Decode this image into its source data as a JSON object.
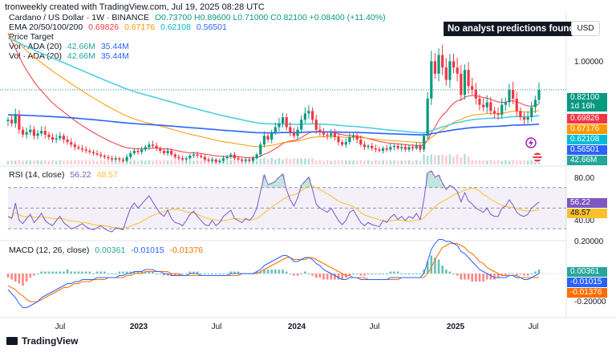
{
  "header": {
    "text": "tronweekly created with TradingView.com, Jul 19, 2025 08:28 UTC"
  },
  "symbol": {
    "title": "Cardano / US Dollar · 1W · BINANCE",
    "ohlc": "O0.73700  H0.89600  L0.71000  C0.82100  +0.08400 (+11.40%)",
    "price_up_color": "#089981"
  },
  "ema": {
    "label": "EMA 20/50/100/200",
    "values": [
      "0.69826",
      "0.67176",
      "0.62108",
      "0.56501"
    ],
    "colors": [
      "#f23645",
      "#ff9800",
      "#00bcd4",
      "#2962ff"
    ]
  },
  "price_target": {
    "label": "Price Target"
  },
  "vol_rows": [
    {
      "label": "Vol · ADA (20)",
      "v1": "42.66M",
      "v2": "35.44M"
    },
    {
      "label": "Vol · ADA (20)",
      "v1": "42.66M",
      "v2": "35.44M"
    }
  ],
  "tooltip": "No analyst predictions found.",
  "currency": "USD",
  "price_axis": {
    "ticks": [
      "1.00000"
    ],
    "tags": [
      {
        "text": "0.82100",
        "color": "#089981"
      },
      {
        "text": "1d 16h",
        "color": "#089981"
      },
      {
        "text": "0.69826",
        "color": "#f23645"
      },
      {
        "text": "0.67176",
        "color": "#ff9800"
      },
      {
        "text": "0.62108",
        "color": "#00bcd4"
      },
      {
        "text": "0.56501",
        "color": "#2962ff"
      },
      {
        "text": "42.66M",
        "color": "#26a69a"
      }
    ]
  },
  "rsi": {
    "label": "RSI (14, close)",
    "v1": "56.22",
    "v2": "48.57",
    "ticks": [
      "80.00",
      "40.00"
    ],
    "tags": [
      {
        "text": "56.22",
        "color": "#7e57c2"
      },
      {
        "text": "48.57",
        "color": "#fbc02d"
      }
    ]
  },
  "macd": {
    "label": "MACD (12, 26, close)",
    "v1": "0.00361",
    "v2": "-0.01015",
    "v3": "-0.01376",
    "ticks": [
      "0.20000",
      "-0.20000"
    ],
    "tags": [
      {
        "text": "0.00361",
        "color": "#26a69a"
      },
      {
        "text": "-0.01015",
        "color": "#2962ff"
      },
      {
        "text": "-0.01376",
        "color": "#ff6d00"
      }
    ]
  },
  "x_axis": [
    {
      "label": "Jul",
      "bold": false
    },
    {
      "label": "2023",
      "bold": true
    },
    {
      "label": "Jul",
      "bold": false
    },
    {
      "label": "2024",
      "bold": true
    },
    {
      "label": "Jul",
      "bold": false
    },
    {
      "label": "2025",
      "bold": true
    },
    {
      "label": "Jul",
      "bold": false
    }
  ],
  "footer": "TradingView",
  "chart_data": [
    {
      "type": "candlestick",
      "title": "Cardano / US Dollar · 1W · BINANCE",
      "last": {
        "open": 0.737,
        "high": 0.896,
        "low": 0.71,
        "close": 0.821,
        "change": 0.084,
        "change_pct": 11.4
      },
      "close_series": [
        0.58,
        0.55,
        0.62,
        0.5,
        0.46,
        0.48,
        0.5,
        0.45,
        0.47,
        0.49,
        0.46,
        0.44,
        0.42,
        0.43,
        0.45,
        0.42,
        0.4,
        0.38,
        0.36,
        0.35,
        0.34,
        0.33,
        0.32,
        0.31,
        0.3,
        0.29,
        0.28,
        0.27,
        0.26,
        0.27,
        0.26,
        0.25,
        0.28,
        0.31,
        0.33,
        0.32,
        0.34,
        0.36,
        0.38,
        0.37,
        0.35,
        0.33,
        0.31,
        0.33,
        0.3,
        0.28,
        0.27,
        0.26,
        0.27,
        0.29,
        0.3,
        0.29,
        0.28,
        0.26,
        0.25,
        0.26,
        0.24,
        0.25,
        0.27,
        0.28,
        0.3,
        0.27,
        0.26,
        0.25,
        0.26,
        0.25,
        0.27,
        0.3,
        0.38,
        0.45,
        0.42,
        0.48,
        0.52,
        0.55,
        0.6,
        0.52,
        0.48,
        0.45,
        0.5,
        0.58,
        0.63,
        0.65,
        0.58,
        0.5,
        0.48,
        0.46,
        0.45,
        0.47,
        0.44,
        0.4,
        0.38,
        0.4,
        0.44,
        0.45,
        0.42,
        0.38,
        0.36,
        0.37,
        0.35,
        0.34,
        0.33,
        0.35,
        0.34,
        0.36,
        0.37,
        0.35,
        0.36,
        0.34,
        0.36,
        0.35,
        0.37,
        0.34,
        0.45,
        0.75,
        1.05,
        0.95,
        1.1,
        1.0,
        0.9,
        1.05,
        1.0,
        0.95,
        0.78,
        0.98,
        0.85,
        0.82,
        0.75,
        0.7,
        0.68,
        0.72,
        0.65,
        0.63,
        0.62,
        0.7,
        0.72,
        0.82,
        0.75,
        0.65,
        0.6,
        0.58,
        0.6,
        0.68,
        0.74,
        0.82
      ],
      "ema": {
        "20": 0.69826,
        "50": 0.67176,
        "100": 0.62108,
        "200": 0.56501
      },
      "volume_ma": {
        "last": "42.66M",
        "ma20": "35.44M"
      }
    },
    {
      "type": "line",
      "title": "RSI (14, close)",
      "last": 56.22,
      "ma": 48.57,
      "ylim": [
        20,
        90
      ],
      "bands": [
        70,
        30
      ],
      "series": [
        {
          "name": "RSI",
          "values": [
            42,
            40,
            55,
            38,
            35,
            40,
            44,
            36,
            40,
            45,
            38,
            35,
            33,
            38,
            42,
            36,
            33,
            30,
            31,
            33,
            35,
            32,
            30,
            29,
            31,
            33,
            30,
            28,
            27,
            31,
            30,
            29,
            40,
            50,
            55,
            50,
            54,
            58,
            62,
            56,
            50,
            45,
            42,
            48,
            40,
            36,
            35,
            33,
            38,
            44,
            47,
            42,
            38,
            34,
            33,
            38,
            33,
            36,
            42,
            45,
            48,
            40,
            38,
            36,
            40,
            38,
            42,
            50,
            66,
            82,
            73,
            74,
            76,
            80,
            83,
            68,
            58,
            52,
            60,
            72,
            76,
            80,
            68,
            54,
            50,
            48,
            46,
            50,
            44,
            38,
            34,
            38,
            46,
            48,
            42,
            36,
            33,
            36,
            34,
            33,
            32,
            38,
            36,
            41,
            44,
            39,
            42,
            38,
            42,
            40,
            45,
            39,
            58,
            84,
            86,
            80,
            82,
            74,
            68,
            72,
            70,
            66,
            56,
            65,
            57,
            54,
            50,
            48,
            46,
            50,
            44,
            42,
            42,
            50,
            52,
            58,
            53,
            46,
            43,
            42,
            44,
            50,
            53,
            56
          ]
        }
      ]
    },
    {
      "type": "line",
      "title": "MACD (12, 26, close)",
      "last": {
        "hist": 0.00361,
        "macd": -0.01015,
        "signal": -0.01376
      },
      "ylim": [
        -0.25,
        0.25
      ],
      "series": [
        {
          "name": "MACD",
          "values": [
            -0.08,
            -0.1,
            -0.12,
            -0.15,
            -0.17,
            -0.17,
            -0.16,
            -0.15,
            -0.14,
            -0.12,
            -0.11,
            -0.1,
            -0.09,
            -0.08,
            -0.07,
            -0.06,
            -0.05,
            -0.05,
            -0.04,
            -0.04,
            -0.03,
            -0.03,
            -0.03,
            -0.03,
            -0.02,
            -0.02,
            -0.02,
            -0.02,
            -0.02,
            -0.02,
            -0.01,
            -0.01,
            0.0,
            0.0,
            0.01,
            0.01,
            0.01,
            0.02,
            0.02,
            0.02,
            0.01,
            0.01,
            0.0,
            0.0,
            -0.01,
            -0.01,
            -0.01,
            -0.01,
            -0.01,
            0.0,
            0.0,
            0.0,
            -0.01,
            -0.01,
            -0.01,
            -0.01,
            -0.01,
            -0.01,
            -0.01,
            -0.01,
            0.0,
            0.0,
            0.0,
            0.0,
            0.0,
            0.0,
            0.0,
            0.01,
            0.02,
            0.04,
            0.05,
            0.06,
            0.07,
            0.08,
            0.09,
            0.09,
            0.08,
            0.06,
            0.06,
            0.07,
            0.08,
            0.08,
            0.07,
            0.05,
            0.04,
            0.02,
            0.01,
            0.0,
            -0.01,
            -0.02,
            -0.03,
            -0.03,
            -0.02,
            -0.02,
            -0.02,
            -0.03,
            -0.03,
            -0.03,
            -0.03,
            -0.03,
            -0.03,
            -0.03,
            -0.03,
            -0.02,
            -0.02,
            -0.02,
            -0.02,
            -0.02,
            -0.02,
            -0.02,
            -0.02,
            -0.02,
            0.0,
            0.06,
            0.12,
            0.15,
            0.17,
            0.17,
            0.16,
            0.16,
            0.15,
            0.14,
            0.11,
            0.1,
            0.08,
            0.06,
            0.04,
            0.02,
            0.01,
            0.0,
            -0.01,
            -0.02,
            -0.02,
            -0.02,
            -0.02,
            -0.01,
            -0.01,
            -0.02,
            -0.02,
            -0.03,
            -0.03,
            -0.02,
            -0.01,
            0.0
          ]
        },
        {
          "name": "Signal",
          "values": [
            -0.06,
            -0.07,
            -0.08,
            -0.1,
            -0.11,
            -0.13,
            -0.14,
            -0.14,
            -0.14,
            -0.13,
            -0.12,
            -0.11,
            -0.1,
            -0.09,
            -0.08,
            -0.07,
            -0.07,
            -0.06,
            -0.05,
            -0.05,
            -0.04,
            -0.04,
            -0.04,
            -0.03,
            -0.03,
            -0.03,
            -0.03,
            -0.02,
            -0.02,
            -0.02,
            -0.02,
            -0.02,
            -0.01,
            -0.01,
            0.0,
            0.0,
            0.0,
            0.01,
            0.01,
            0.01,
            0.01,
            0.01,
            0.01,
            0.01,
            0.0,
            0.0,
            0.0,
            -0.01,
            -0.01,
            -0.01,
            -0.01,
            -0.01,
            -0.01,
            -0.01,
            -0.01,
            -0.01,
            -0.01,
            -0.01,
            -0.01,
            -0.01,
            -0.01,
            -0.01,
            -0.01,
            0.0,
            0.0,
            0.0,
            0.0,
            0.0,
            0.01,
            0.02,
            0.03,
            0.04,
            0.05,
            0.06,
            0.07,
            0.08,
            0.08,
            0.07,
            0.07,
            0.07,
            0.07,
            0.08,
            0.08,
            0.07,
            0.06,
            0.05,
            0.04,
            0.03,
            0.02,
            0.01,
            0.0,
            -0.01,
            -0.01,
            -0.02,
            -0.02,
            -0.02,
            -0.02,
            -0.03,
            -0.03,
            -0.03,
            -0.03,
            -0.03,
            -0.03,
            -0.03,
            -0.03,
            -0.03,
            -0.02,
            -0.02,
            -0.02,
            -0.02,
            -0.02,
            -0.02,
            -0.02,
            0.0,
            0.03,
            0.07,
            0.1,
            0.13,
            0.14,
            0.15,
            0.15,
            0.15,
            0.14,
            0.13,
            0.11,
            0.1,
            0.08,
            0.06,
            0.05,
            0.03,
            0.02,
            0.01,
            0.0,
            -0.01,
            -0.01,
            -0.01,
            -0.01,
            -0.01,
            -0.02,
            -0.02,
            -0.02,
            -0.02,
            -0.02,
            -0.02
          ]
        }
      ]
    }
  ]
}
